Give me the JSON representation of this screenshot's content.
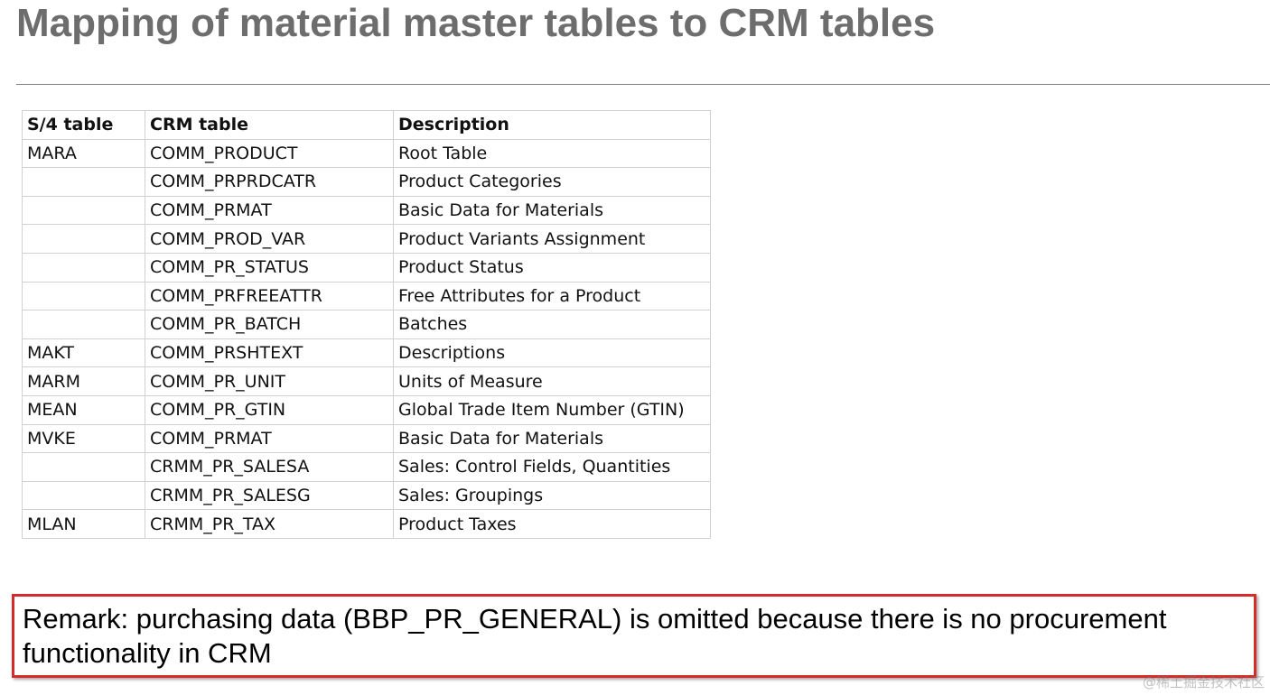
{
  "title": "Mapping of material master tables to CRM tables",
  "table": {
    "headers": [
      "S/4 table",
      "CRM table",
      "Description"
    ],
    "rows": [
      [
        "MARA",
        "COMM_PRODUCT",
        "Root Table"
      ],
      [
        "",
        "COMM_PRPRDCATR",
        "Product Categories"
      ],
      [
        "",
        "COMM_PRMAT",
        "Basic Data for Materials"
      ],
      [
        "",
        "COMM_PROD_VAR",
        "Product Variants Assignment"
      ],
      [
        "",
        "COMM_PR_STATUS",
        "Product Status"
      ],
      [
        "",
        "COMM_PRFREEATTR",
        "Free Attributes for a Product"
      ],
      [
        "",
        "COMM_PR_BATCH",
        "Batches"
      ],
      [
        "MAKT",
        "COMM_PRSHTEXT",
        "Descriptions"
      ],
      [
        "MARM",
        "COMM_PR_UNIT",
        "Units of Measure"
      ],
      [
        "MEAN",
        "COMM_PR_GTIN",
        "Global Trade Item Number (GTIN)"
      ],
      [
        "MVKE",
        "COMM_PRMAT",
        "Basic Data for Materials"
      ],
      [
        "",
        "CRMM_PR_SALESA",
        "Sales: Control Fields, Quantities"
      ],
      [
        "",
        "CRMM_PR_SALESG",
        "Sales: Groupings"
      ],
      [
        "MLAN",
        "CRMM_PR_TAX",
        "Product Taxes"
      ]
    ]
  },
  "remark": "Remark: purchasing data (BBP_PR_GENERAL) is omitted because there is no procurement functionality in CRM",
  "watermark": "@稀土掘金技术社区",
  "colors": {
    "title": "#6d6d6d",
    "remark_border": "#d62b2b",
    "table_border": "#d0d0d0"
  }
}
